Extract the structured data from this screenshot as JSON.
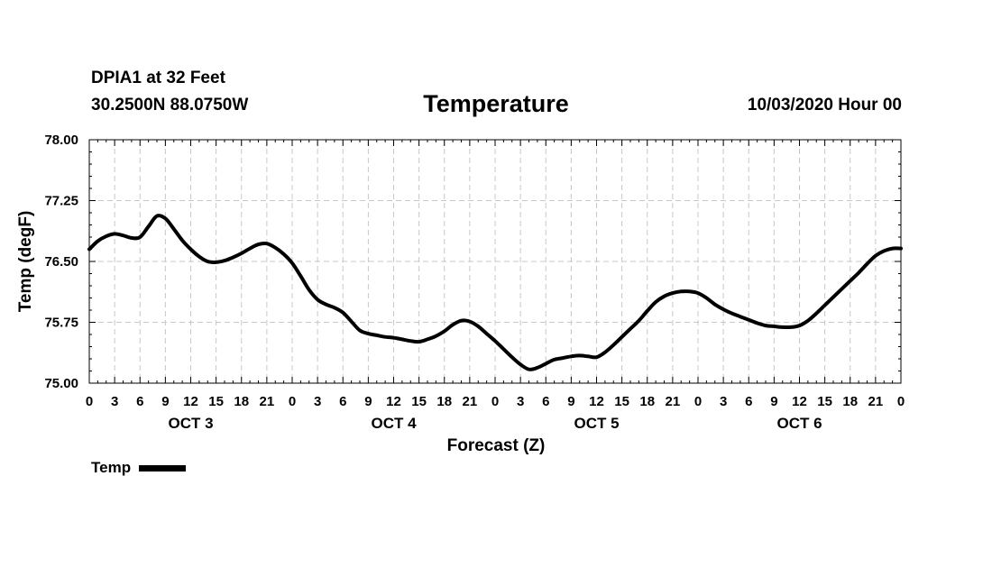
{
  "header": {
    "station": "DPIA1 at 32 Feet",
    "coordinates": "30.2500N 88.0750W",
    "title": "Temperature",
    "timestamp": "10/03/2020 Hour 00"
  },
  "legend": {
    "label": "Temp",
    "color": "#000000"
  },
  "chart_data": {
    "type": "line",
    "title": "Temperature",
    "xlabel": "Forecast (Z)",
    "ylabel": "Temp (degF)",
    "ylim": [
      75.0,
      78.0
    ],
    "xlim": [
      0,
      96
    ],
    "x_unit": "forecast hours from 10/03/2020 00Z",
    "yticks": [
      "75.00",
      "75.75",
      "76.50",
      "77.25",
      "78.00"
    ],
    "ytick_values": [
      75.0,
      75.75,
      76.5,
      77.25,
      78.0
    ],
    "xtick_labels": [
      "0",
      "3",
      "6",
      "9",
      "12",
      "15",
      "18",
      "21",
      "0",
      "3",
      "6",
      "9",
      "12",
      "15",
      "18",
      "21",
      "0",
      "3",
      "6",
      "9",
      "12",
      "15",
      "18",
      "21",
      "0",
      "3",
      "6",
      "9",
      "12",
      "15",
      "18",
      "21",
      "0"
    ],
    "day_labels": [
      {
        "label": "OCT 3",
        "hour": 12
      },
      {
        "label": "OCT 4",
        "hour": 36
      },
      {
        "label": "OCT 5",
        "hour": 60
      },
      {
        "label": "OCT 6",
        "hour": 84
      }
    ],
    "grid": true,
    "series": [
      {
        "name": "Temp",
        "color": "#000000",
        "x": [
          0,
          1,
          2,
          3,
          4,
          5,
          6,
          7,
          8,
          9,
          10,
          11,
          12,
          13,
          14,
          15,
          16,
          17,
          18,
          19,
          20,
          21,
          22,
          23,
          24,
          25,
          26,
          27,
          28,
          29,
          30,
          31,
          32,
          33,
          34,
          35,
          36,
          37,
          38,
          39,
          40,
          41,
          42,
          43,
          44,
          45,
          46,
          47,
          48,
          49,
          50,
          51,
          52,
          53,
          54,
          55,
          56,
          57,
          58,
          59,
          60,
          61,
          62,
          63,
          64,
          65,
          66,
          67,
          68,
          69,
          70,
          71,
          72,
          73,
          74,
          75,
          76,
          77,
          78,
          79,
          80,
          81,
          82,
          83,
          84,
          85,
          86,
          87,
          88,
          89,
          90,
          91,
          92,
          93,
          94,
          95,
          96
        ],
        "values": [
          76.65,
          76.75,
          76.81,
          76.84,
          76.82,
          76.79,
          76.8,
          76.93,
          77.06,
          77.03,
          76.9,
          76.76,
          76.65,
          76.56,
          76.5,
          76.49,
          76.51,
          76.55,
          76.6,
          76.66,
          76.71,
          76.72,
          76.67,
          76.59,
          76.48,
          76.32,
          76.15,
          76.03,
          75.97,
          75.93,
          75.87,
          75.76,
          75.65,
          75.61,
          75.59,
          75.57,
          75.56,
          75.54,
          75.52,
          75.51,
          75.54,
          75.58,
          75.64,
          75.72,
          75.77,
          75.76,
          75.7,
          75.61,
          75.52,
          75.42,
          75.32,
          75.23,
          75.17,
          75.19,
          75.24,
          75.29,
          75.31,
          75.33,
          75.34,
          75.33,
          75.32,
          75.38,
          75.47,
          75.57,
          75.67,
          75.77,
          75.89,
          76.0,
          76.07,
          76.11,
          76.13,
          76.13,
          76.11,
          76.05,
          75.97,
          75.91,
          75.86,
          75.82,
          75.78,
          75.74,
          75.71,
          75.7,
          75.69,
          75.69,
          75.71,
          75.77,
          75.86,
          75.96,
          76.06,
          76.16,
          76.26,
          76.36,
          76.47,
          76.57,
          76.63,
          76.66,
          76.66
        ]
      }
    ]
  }
}
